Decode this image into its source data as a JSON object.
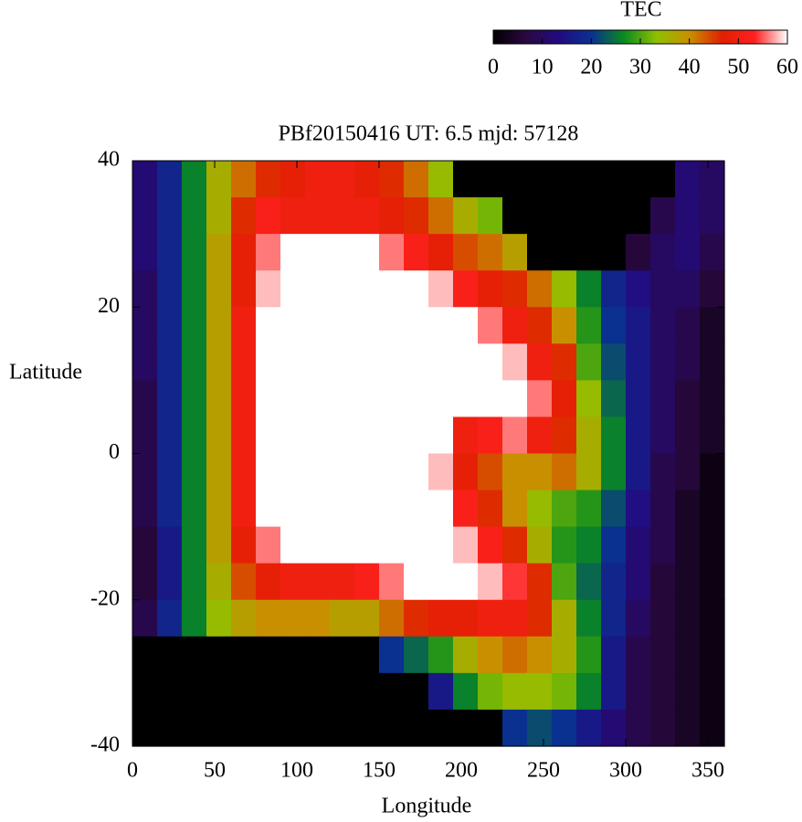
{
  "chart_data": {
    "type": "heatmap",
    "title": "PBf20150416  UT: 6.5  mjd: 57128",
    "x_label": "Longitude",
    "y_label": "Latitude",
    "colorbar_label": "TEC",
    "x": [
      7.5,
      22.5,
      37.5,
      52.5,
      67.5,
      82.5,
      97.5,
      112.5,
      127.5,
      142.5,
      157.5,
      172.5,
      187.5,
      202.5,
      217.5,
      232.5,
      247.5,
      262.5,
      277.5,
      292.5,
      307.5,
      322.5,
      337.5,
      352.5
    ],
    "y": [
      37.5,
      32.5,
      27.5,
      22.5,
      17.5,
      12.5,
      7.5,
      2.5,
      -2.5,
      -7.5,
      -12.5,
      -17.5,
      -22.5,
      -27.5,
      -32.5,
      -37.5
    ],
    "z": [
      [
        12,
        18,
        26,
        36,
        42,
        46,
        48,
        50,
        50,
        48,
        46,
        42,
        34,
        0,
        0,
        0,
        0,
        0,
        0,
        0,
        0,
        0,
        12,
        10
      ],
      [
        12,
        18,
        26,
        36,
        46,
        52,
        50,
        50,
        50,
        50,
        48,
        46,
        42,
        36,
        32,
        0,
        0,
        0,
        0,
        0,
        0,
        8,
        12,
        10
      ],
      [
        12,
        18,
        26,
        38,
        48,
        56,
        60,
        60,
        60,
        60,
        56,
        52,
        48,
        44,
        42,
        38,
        0,
        0,
        0,
        0,
        6,
        10,
        12,
        8
      ],
      [
        10,
        18,
        26,
        38,
        48,
        58,
        60,
        60,
        60,
        60,
        60,
        60,
        58,
        52,
        48,
        46,
        42,
        34,
        26,
        18,
        14,
        10,
        10,
        6
      ],
      [
        10,
        18,
        26,
        38,
        50,
        60,
        60,
        60,
        60,
        60,
        60,
        60,
        60,
        60,
        56,
        50,
        46,
        40,
        28,
        20,
        16,
        10,
        8,
        4
      ],
      [
        10,
        18,
        26,
        38,
        50,
        60,
        60,
        60,
        60,
        60,
        60,
        60,
        60,
        60,
        60,
        58,
        50,
        46,
        30,
        22,
        16,
        10,
        8,
        4
      ],
      [
        8,
        18,
        26,
        38,
        50,
        60,
        60,
        60,
        60,
        60,
        60,
        60,
        60,
        60,
        60,
        60,
        56,
        48,
        34,
        24,
        16,
        10,
        6,
        4
      ],
      [
        8,
        18,
        26,
        38,
        50,
        60,
        60,
        60,
        60,
        60,
        60,
        60,
        60,
        50,
        52,
        56,
        50,
        46,
        36,
        26,
        16,
        10,
        6,
        4
      ],
      [
        8,
        18,
        26,
        38,
        50,
        60,
        60,
        60,
        60,
        60,
        60,
        60,
        58,
        48,
        44,
        40,
        40,
        42,
        36,
        26,
        16,
        8,
        6,
        2
      ],
      [
        8,
        18,
        26,
        38,
        50,
        60,
        60,
        60,
        60,
        60,
        60,
        60,
        60,
        52,
        46,
        40,
        34,
        30,
        28,
        22,
        14,
        8,
        4,
        2
      ],
      [
        6,
        16,
        26,
        38,
        48,
        56,
        60,
        60,
        60,
        60,
        60,
        60,
        60,
        58,
        52,
        46,
        36,
        28,
        26,
        20,
        12,
        8,
        4,
        2
      ],
      [
        6,
        16,
        26,
        36,
        44,
        48,
        50,
        50,
        50,
        52,
        56,
        60,
        60,
        60,
        58,
        54,
        46,
        30,
        24,
        18,
        12,
        6,
        4,
        2
      ],
      [
        8,
        18,
        26,
        34,
        38,
        40,
        40,
        40,
        38,
        38,
        42,
        46,
        48,
        48,
        50,
        50,
        46,
        36,
        26,
        18,
        10,
        6,
        4,
        2
      ],
      [
        0,
        0,
        0,
        0,
        0,
        0,
        0,
        0,
        0,
        0,
        20,
        24,
        28,
        36,
        40,
        42,
        40,
        36,
        28,
        16,
        8,
        6,
        4,
        2
      ],
      [
        0,
        0,
        0,
        0,
        0,
        0,
        0,
        0,
        0,
        0,
        0,
        0,
        16,
        26,
        32,
        34,
        34,
        32,
        26,
        16,
        8,
        6,
        4,
        2
      ],
      [
        0,
        0,
        0,
        0,
        0,
        0,
        0,
        0,
        0,
        0,
        0,
        0,
        0,
        0,
        0,
        20,
        22,
        20,
        16,
        12,
        8,
        6,
        4,
        2
      ]
    ],
    "xlim": [
      0,
      360
    ],
    "ylim": [
      -40,
      40
    ],
    "zlim": [
      0,
      60
    ],
    "xticks": [
      0,
      50,
      100,
      150,
      200,
      250,
      300,
      350
    ],
    "yticks": [
      -40,
      -20,
      0,
      20,
      40
    ],
    "zticks": [
      0,
      10,
      20,
      30,
      40,
      50,
      60
    ],
    "colormap": [
      "#000000",
      "#2a0840",
      "#220a80",
      "#0a3090",
      "#0a8a20",
      "#90c000",
      "#c89000",
      "#e02000",
      "#ff2020",
      "#ffffff"
    ]
  }
}
